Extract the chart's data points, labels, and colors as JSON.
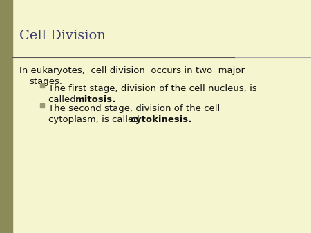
{
  "title": "Cell Division",
  "title_color": "#3a3a6e",
  "title_fontsize": 14,
  "background_color": "#f5f5d0",
  "left_bar_color": "#8b8b5a",
  "separator_line_color": "#555555",
  "separator_line_color2": "#aaaaaa",
  "body_text_color": "#111111",
  "body_fontsize": 9.5,
  "bullet_color": "#999977",
  "main_line1": "In eukaryotes,  cell division  occurs in two  major",
  "main_line2": "stages.",
  "b1_line1": "The first stage, division of the cell nucleus, is",
  "b1_line2_normal": "called ",
  "b1_line2_bold": "mitosis.",
  "b2_line1": "The second stage, division of the cell",
  "b2_line2_normal": "cytoplasm, is called ",
  "b2_line2_bold": "cytokinesis."
}
